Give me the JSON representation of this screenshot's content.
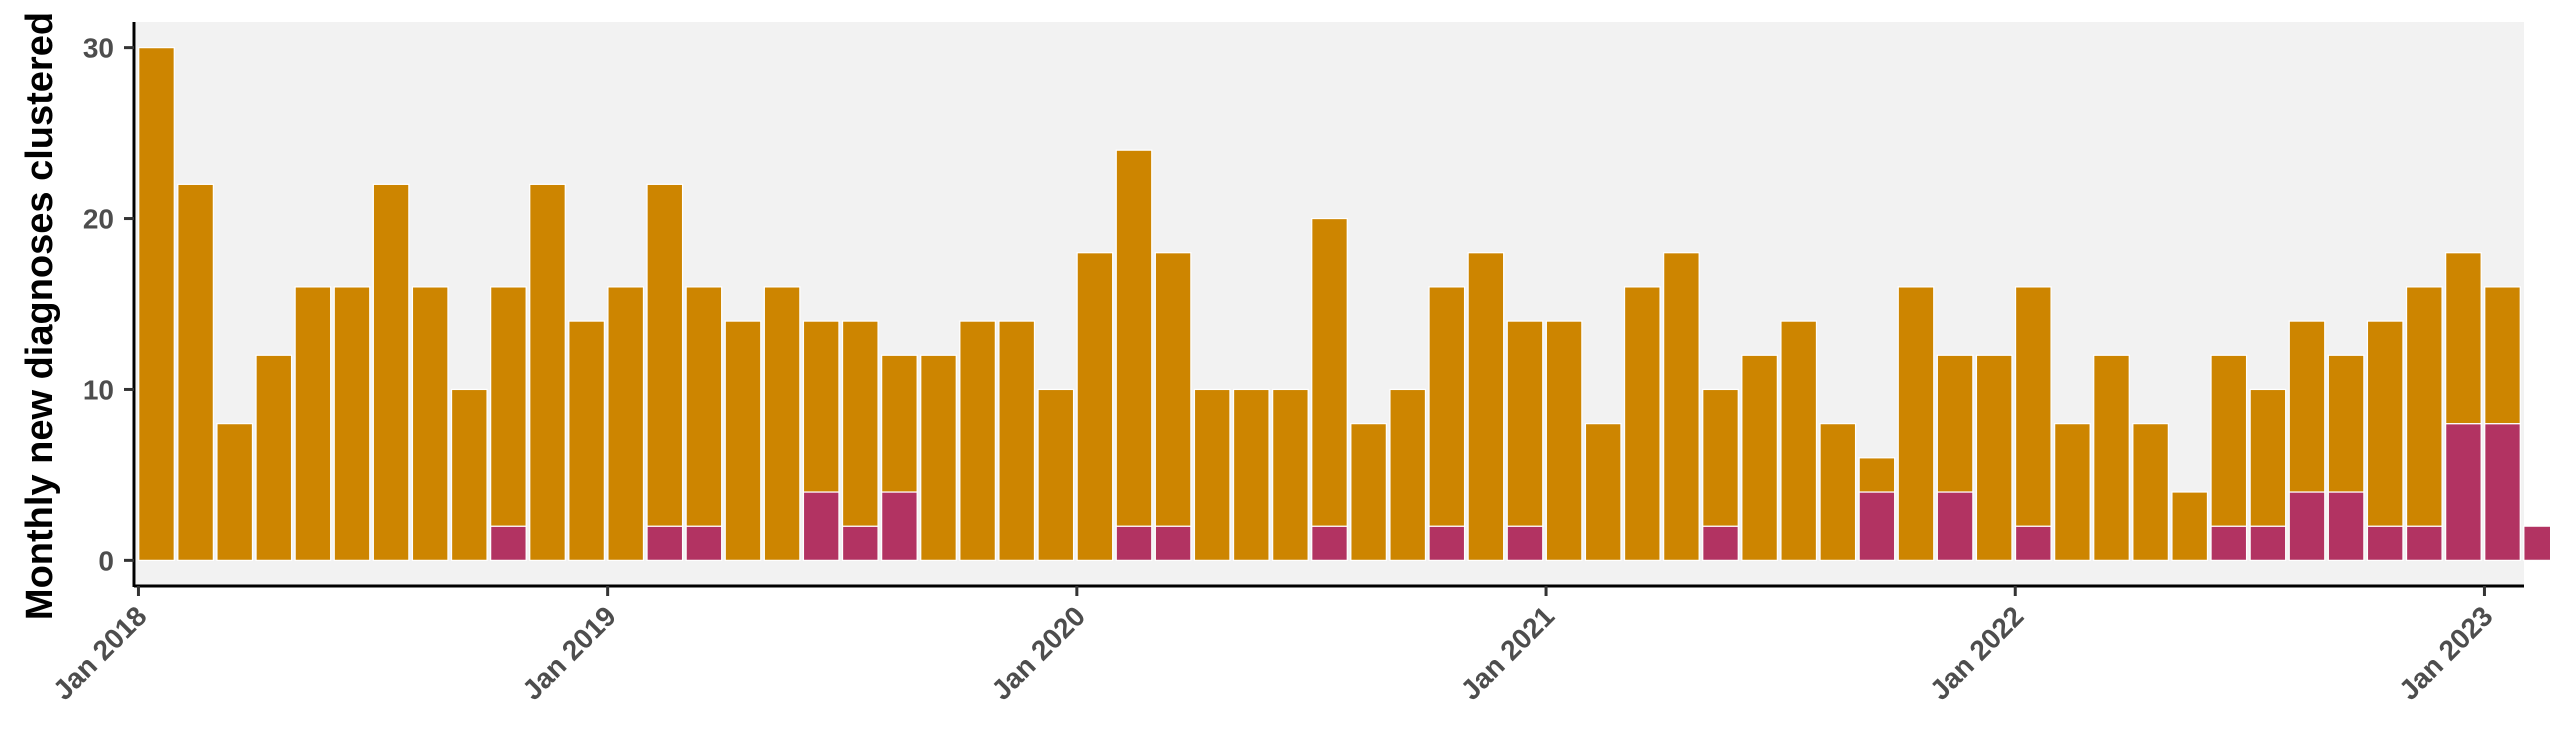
{
  "chart_data": {
    "type": "bar",
    "stacked": true,
    "title": "",
    "xlabel": "",
    "ylabel": "Monthly new diagnoses clustered",
    "ylim": [
      -1.5,
      31.5
    ],
    "yticks": [
      0,
      10,
      20,
      30
    ],
    "x_axis": {
      "kind": "date",
      "start_month": "2018-01",
      "ticks": [
        {
          "label": "Jan 2018",
          "month_index": 0
        },
        {
          "label": "Jan 2019",
          "month_index": 12
        },
        {
          "label": "Jan 2020",
          "month_index": 24
        },
        {
          "label": "Jan 2021",
          "month_index": 36
        },
        {
          "label": "Jan 2022",
          "month_index": 48
        },
        {
          "label": "Jan 2023",
          "month_index": 60
        }
      ]
    },
    "grid": false,
    "legend": "none",
    "panel_background": "#f2f2f2",
    "series": [
      {
        "color": "#b23362",
        "values": [
          0,
          0,
          0,
          0,
          0,
          0,
          0,
          0,
          0,
          2,
          0,
          0,
          0,
          2,
          2,
          0,
          0,
          4,
          2,
          4,
          0,
          0,
          0,
          0,
          0,
          2,
          2,
          0,
          0,
          0,
          2,
          0,
          0,
          2,
          0,
          2,
          0,
          0,
          0,
          0,
          2,
          0,
          0,
          0,
          4,
          0,
          4,
          0,
          2,
          0,
          0,
          0,
          0,
          2,
          2,
          4,
          4,
          2,
          2,
          8,
          8,
          2
        ]
      },
      {
        "color": "#cd8500",
        "values": [
          30,
          22,
          8,
          12,
          16,
          16,
          22,
          16,
          10,
          14,
          22,
          14,
          16,
          20,
          14,
          14,
          16,
          10,
          12,
          8,
          12,
          14,
          14,
          10,
          18,
          22,
          16,
          10,
          10,
          10,
          18,
          8,
          10,
          14,
          18,
          12,
          14,
          8,
          16,
          18,
          8,
          12,
          14,
          8,
          2,
          16,
          8,
          12,
          14,
          8,
          12,
          8,
          4,
          10,
          8,
          10,
          8,
          12,
          14,
          10,
          8,
          0
        ]
      }
    ]
  }
}
